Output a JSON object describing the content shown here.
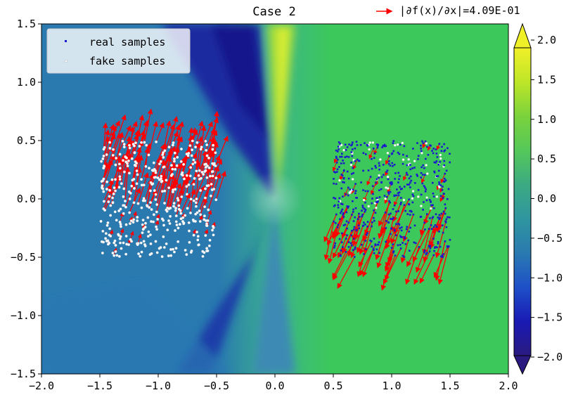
{
  "chart_data": {
    "type": "scatter",
    "title": "Case 2",
    "xlim": [
      -2.0,
      2.0
    ],
    "ylim": [
      -1.5,
      1.5
    ],
    "x_ticks": [
      "−2.0",
      "−1.5",
      "−1.0",
      "−0.5",
      "0.0",
      "0.5",
      "1.0",
      "1.5",
      "2.0"
    ],
    "y_ticks": [
      "−1.5",
      "−1.0",
      "−0.5",
      "0.0",
      "0.5",
      "1.0",
      "1.5"
    ],
    "grid": false,
    "legend_placement": "top-left",
    "legend": [
      {
        "label": "real samples",
        "color": "#1a1acc"
      },
      {
        "label": "fake samples",
        "color": "#ffffff"
      }
    ],
    "quiver_key": {
      "label": "|∂f(x)/∂x|=4.09E-01",
      "color": "#ff0000"
    },
    "series": [
      {
        "name": "real samples",
        "region": "square",
        "x_range": [
          0.5,
          1.5
        ],
        "y_range": [
          -0.5,
          0.5
        ]
      },
      {
        "name": "fake samples",
        "region": "square",
        "x_range": [
          -1.5,
          -0.5
        ],
        "y_range": [
          -0.5,
          0.5
        ]
      }
    ],
    "colorbar": {
      "min": -2.0,
      "max": 2.0,
      "extend": "both",
      "ticks": [
        "2.0",
        "1.5",
        "1.0",
        "0.5",
        "0.0",
        "−0.5",
        "−1.0",
        "−1.5",
        "−2.0"
      ],
      "colormap": [
        "#2a1a80",
        "#1a1ab4",
        "#1e50c8",
        "#2a7ab0",
        "#2f96a0",
        "#3caa82",
        "#55c85a",
        "#7ad23c",
        "#bee628",
        "#f0f028"
      ]
    },
    "background_colors": {
      "left_region": "#2a7ab0",
      "right_region": "#3cc85a",
      "dark_wedge": "#1a2aa0",
      "bright_streak": "#c8e628"
    },
    "arrow_color": "#ff0000"
  }
}
